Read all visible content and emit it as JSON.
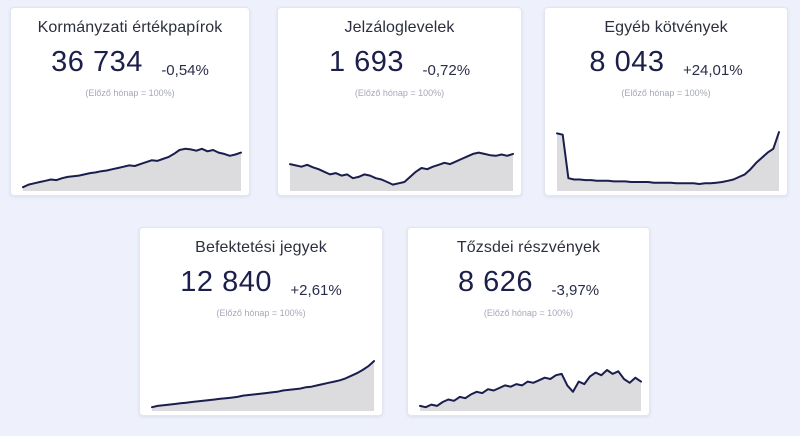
{
  "colors": {
    "background": "#eef1fb",
    "card": "#ffffff",
    "line": "#1b1d4d",
    "area": "#dcdcdf"
  },
  "cards": [
    {
      "title": "Kormányzati értékpapírok",
      "value": "36 734",
      "change": "-0,54%",
      "note": "(Előző hónap = 100%)",
      "trend": [
        6,
        10,
        12,
        14,
        16,
        18,
        17,
        20,
        22,
        23,
        24,
        26,
        28,
        29,
        31,
        32,
        34,
        36,
        38,
        40,
        39,
        42,
        45,
        48,
        47,
        50,
        53,
        58,
        64,
        66,
        65,
        63,
        66,
        62,
        64,
        60,
        58,
        55,
        57,
        60
      ]
    },
    {
      "title": "Jelzáloglevelek",
      "value": "1 693",
      "change": "-0,72%",
      "note": "(Előző hónap = 100%)",
      "trend": [
        42,
        40,
        38,
        41,
        37,
        34,
        30,
        26,
        28,
        24,
        26,
        20,
        22,
        26,
        24,
        20,
        18,
        14,
        10,
        12,
        14,
        22,
        30,
        36,
        34,
        38,
        41,
        44,
        42,
        46,
        50,
        54,
        58,
        60,
        58,
        56,
        55,
        57,
        55,
        58
      ]
    },
    {
      "title": "Egyéb kötvények",
      "value": "8 043",
      "change": "+24,01%",
      "note": "(Előző hónap = 100%)",
      "trend": [
        90,
        88,
        20,
        18,
        18,
        17,
        17,
        16,
        16,
        16,
        15,
        15,
        15,
        14,
        14,
        14,
        14,
        13,
        13,
        13,
        13,
        12,
        12,
        12,
        12,
        11,
        12,
        12,
        13,
        14,
        16,
        18,
        22,
        26,
        34,
        44,
        52,
        60,
        66,
        92
      ]
    },
    {
      "title": "Befektetési jegyek",
      "value": "12 840",
      "change": "+2,61%",
      "note": "(Előző hónap = 100%)",
      "trend": [
        6,
        8,
        9,
        10,
        11,
        12,
        13,
        14,
        15,
        16,
        17,
        18,
        19,
        20,
        21,
        22,
        24,
        25,
        26,
        27,
        28,
        29,
        30,
        32,
        33,
        34,
        35,
        37,
        38,
        40,
        42,
        44,
        46,
        48,
        51,
        55,
        59,
        64,
        70,
        78
      ]
    },
    {
      "title": "Tőzsdei részvények",
      "value": "8 626",
      "change": "-3,97%",
      "note": "(Előző hónap = 100%)",
      "trend": [
        8,
        6,
        10,
        8,
        14,
        18,
        16,
        22,
        20,
        26,
        30,
        28,
        34,
        32,
        36,
        40,
        38,
        42,
        40,
        46,
        44,
        48,
        52,
        50,
        56,
        58,
        40,
        30,
        46,
        42,
        54,
        60,
        56,
        64,
        58,
        62,
        50,
        44,
        52,
        46
      ]
    }
  ]
}
